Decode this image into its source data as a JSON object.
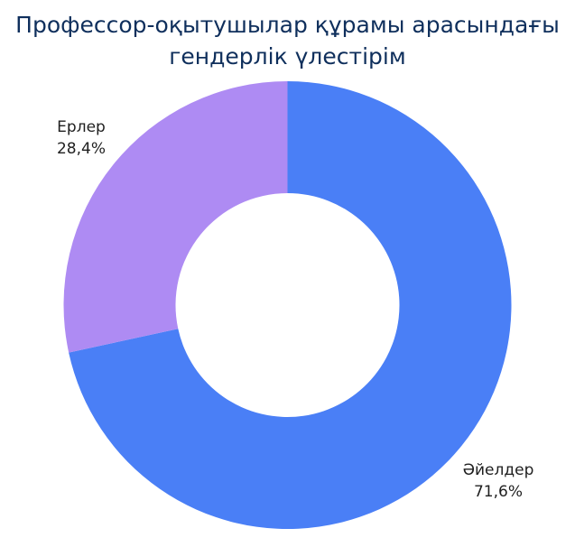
{
  "chart_data": {
    "type": "pie",
    "variant": "donut",
    "title": "Профессор-оқытушылар құрамы арасындағы гендерлік үлестірім",
    "title_lines": [
      "Профессор-оқытушылар құрамы арасындағы",
      "гендерлік үлестірім"
    ],
    "categories": [
      "Әйелдер",
      "Ерлер"
    ],
    "values": [
      71.6,
      28.4
    ],
    "value_labels": [
      "71,6%",
      "28,4%"
    ],
    "colors": [
      "#4a7ff6",
      "#ae8bf3"
    ],
    "start_angle": "12 o'clock",
    "direction": "clockwise",
    "legend": "none"
  }
}
